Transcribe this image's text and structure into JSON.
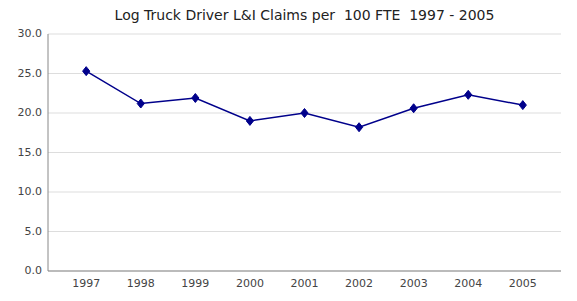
{
  "chart_data": {
    "type": "line",
    "title": "Log Truck Driver L&I Claims per  100 FTE  1997 - 2005",
    "x": [
      1997,
      1998,
      1999,
      2000,
      2001,
      2002,
      2003,
      2004,
      2005
    ],
    "values": [
      25.3,
      21.2,
      21.9,
      19.0,
      20.0,
      18.2,
      20.6,
      22.3,
      21.0
    ],
    "color": "#00008B",
    "marker": "diamond",
    "xlim": [
      1996.3,
      2005.7
    ],
    "xticks": [
      1997,
      1998,
      1999,
      2000,
      2001,
      2002,
      2003,
      2004,
      2005
    ],
    "ylim": [
      0.0,
      30.0
    ],
    "yticks": [
      {
        "value": 0.0,
        "label": "0.0"
      },
      {
        "value": 5.0,
        "label": "5.0"
      },
      {
        "value": 10.0,
        "label": "10.0"
      },
      {
        "value": 15.0,
        "label": "15.0"
      },
      {
        "value": 20.0,
        "label": "20.0"
      },
      {
        "value": 25.0,
        "label": "25.0"
      },
      {
        "value": 30.0,
        "label": "30.0"
      }
    ],
    "grid": true
  }
}
